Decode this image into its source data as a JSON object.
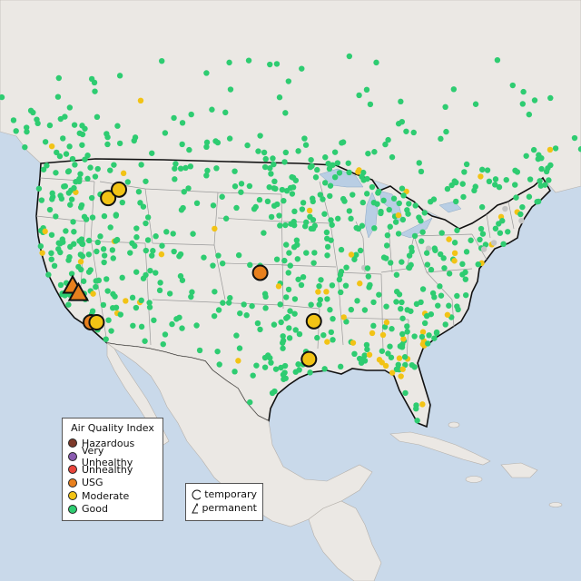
{
  "legend": {
    "title": "Air Quality Index",
    "items": [
      {
        "label": "Hazardous",
        "color": "#7e3a2a"
      },
      {
        "label": "Very Unhealthy",
        "color": "#8a5bb0"
      },
      {
        "label": "Unhealthy",
        "color": "#e8453c"
      },
      {
        "label": "USG",
        "color": "#e8801e"
      },
      {
        "label": "Moderate",
        "color": "#f2c315"
      },
      {
        "label": "Good",
        "color": "#2ecc71"
      }
    ]
  },
  "type_legend": {
    "items": [
      {
        "label": "temporary",
        "shape": "circle"
      },
      {
        "label": "permanent",
        "shape": "triangle"
      }
    ]
  },
  "colors": {
    "ocean": "#c9d9ea",
    "land": "#ebe8e4",
    "land_border": "#b5b0aa",
    "us_border": "#111111",
    "state_border": "#9a9a9a",
    "lake": "#b9cee4",
    "good": "#2ecc71",
    "moderate": "#f2c315",
    "usg": "#e8801e",
    "inactive": "#c4c4c4"
  },
  "large_markers": [
    {
      "category": "USG",
      "shape": "triangle",
      "lon": -120.1,
      "lat": 37.4
    },
    {
      "category": "USG",
      "shape": "triangle",
      "lon": -119.4,
      "lat": 36.7
    },
    {
      "category": "USG",
      "shape": "circle",
      "lon": -117.9,
      "lat": 34.0
    },
    {
      "category": "Moderate",
      "shape": "circle",
      "lon": -117.2,
      "lat": 34.0
    },
    {
      "category": "Moderate",
      "shape": "circle",
      "lon": -115.8,
      "lat": 45.8
    },
    {
      "category": "Moderate",
      "shape": "circle",
      "lon": -114.5,
      "lat": 46.6
    },
    {
      "category": "USG",
      "shape": "circle",
      "lon": -97.4,
      "lat": 38.7
    },
    {
      "category": "Moderate",
      "shape": "circle",
      "lon": -90.9,
      "lat": 34.1
    },
    {
      "category": "Moderate",
      "shape": "circle",
      "lon": -91.5,
      "lat": 30.5
    }
  ]
}
